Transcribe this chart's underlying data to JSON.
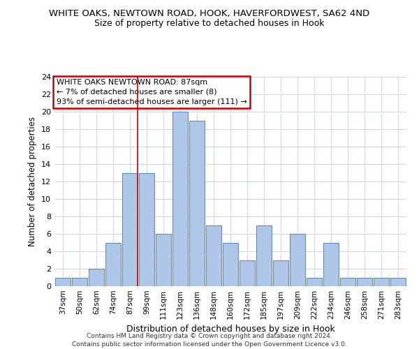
{
  "title1": "WHITE OAKS, NEWTOWN ROAD, HOOK, HAVERFORDWEST, SA62 4ND",
  "title2": "Size of property relative to detached houses in Hook",
  "xlabel": "Distribution of detached houses by size in Hook",
  "ylabel": "Number of detached properties",
  "categories": [
    "37sqm",
    "50sqm",
    "62sqm",
    "74sqm",
    "87sqm",
    "99sqm",
    "111sqm",
    "123sqm",
    "136sqm",
    "148sqm",
    "160sqm",
    "172sqm",
    "185sqm",
    "197sqm",
    "209sqm",
    "222sqm",
    "234sqm",
    "246sqm",
    "258sqm",
    "271sqm",
    "283sqm"
  ],
  "values": [
    1,
    1,
    2,
    5,
    13,
    13,
    6,
    20,
    19,
    7,
    5,
    3,
    7,
    3,
    6,
    1,
    5,
    1,
    1,
    1,
    1
  ],
  "bar_color": "#aec6e8",
  "bar_edge_color": "#5a8fc0",
  "highlight_index": 4,
  "highlight_line_color": "#cc0000",
  "ylim": [
    0,
    24
  ],
  "yticks": [
    0,
    2,
    4,
    6,
    8,
    10,
    12,
    14,
    16,
    18,
    20,
    22,
    24
  ],
  "annotation_box_text": "WHITE OAKS NEWTOWN ROAD: 87sqm\n← 7% of detached houses are smaller (8)\n93% of semi-detached houses are larger (111) →",
  "annotation_box_color": "#cc0000",
  "footer_line1": "Contains HM Land Registry data © Crown copyright and database right 2024.",
  "footer_line2": "Contains public sector information licensed under the Open Government Licence v3.0.",
  "bg_color": "#ffffff",
  "grid_color": "#d0d8e8"
}
